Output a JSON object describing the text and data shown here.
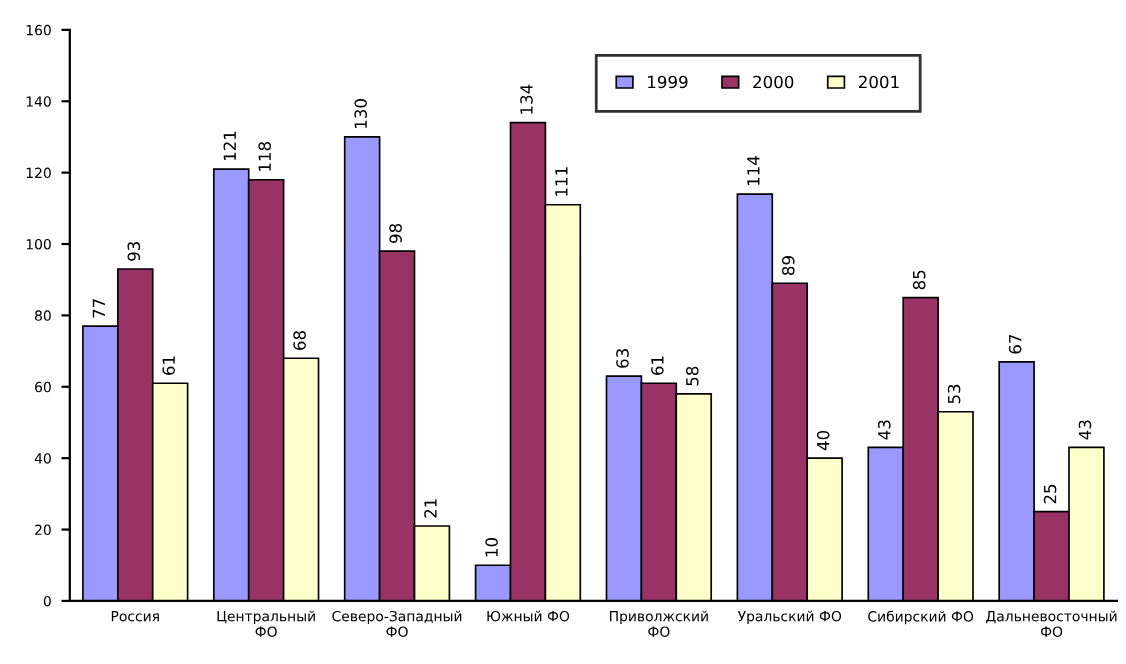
{
  "chart_data": {
    "type": "bar",
    "categories": [
      "Россия",
      "Центральный ФО",
      "Северо-Западный ФО",
      "Южный ФО",
      "Приволжский ФО",
      "Уральский ФО",
      "Сибирский ФО",
      "Дальневосточный ФО"
    ],
    "series": [
      {
        "name": "1999",
        "color": "#9999ff",
        "values": [
          77,
          121,
          130,
          10,
          63,
          114,
          43,
          67
        ]
      },
      {
        "name": "2000",
        "color": "#993366",
        "values": [
          93,
          118,
          98,
          134,
          61,
          89,
          85,
          25
        ]
      },
      {
        "name": "2001",
        "color": "#ffffcc",
        "values": [
          61,
          68,
          21,
          111,
          58,
          40,
          53,
          43
        ]
      }
    ],
    "ylim": [
      0,
      160
    ],
    "yticks": [
      0,
      20,
      40,
      60,
      80,
      100,
      120,
      140,
      160
    ],
    "data_labels": true,
    "legend": "top right",
    "grid": false
  }
}
